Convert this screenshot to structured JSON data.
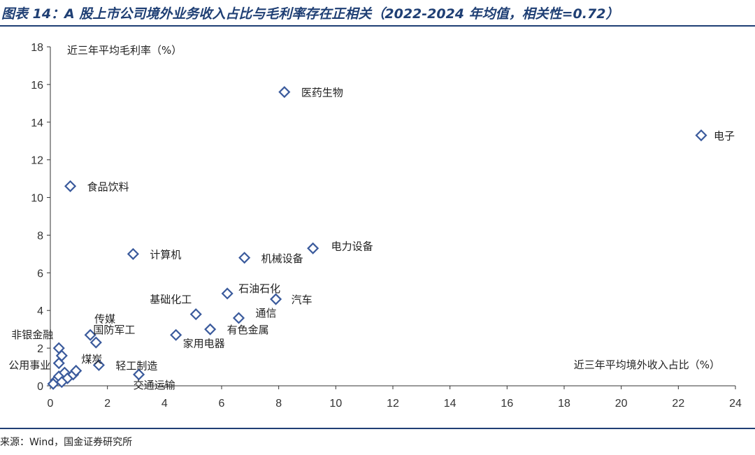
{
  "title": "图表 14：A 股上市公司境外业务收入占比与毛利率存在正相关（2022-2024 年均值，相关性=0.72）",
  "source": "来源：Wind，国金证券研究所",
  "colors": {
    "accent": "#1f3f74",
    "marker": "#3a5a9c"
  },
  "chart_data": {
    "type": "scatter",
    "xlabel": "近三年平均境外收入占比（%）",
    "ylabel": "近三年平均毛利率（%）",
    "xlim": [
      0,
      24
    ],
    "ylim": [
      0,
      18
    ],
    "xticks": [
      "0",
      "2",
      "4",
      "6",
      "8",
      "10",
      "12",
      "14",
      "16",
      "18",
      "20",
      "22",
      "24"
    ],
    "yticks": [
      "0",
      "2",
      "4",
      "6",
      "8",
      "10",
      "12",
      "14",
      "16",
      "18"
    ],
    "grid": false,
    "marker": "diamond",
    "points": [
      {
        "label": "医药生物",
        "x": 8.2,
        "y": 15.6
      },
      {
        "label": "电子",
        "x": 22.8,
        "y": 13.3
      },
      {
        "label": "食品饮料",
        "x": 0.7,
        "y": 10.6
      },
      {
        "label": "计算机",
        "x": 2.9,
        "y": 7.0
      },
      {
        "label": "电力设备",
        "x": 9.2,
        "y": 7.3
      },
      {
        "label": "机械设备",
        "x": 6.8,
        "y": 6.8
      },
      {
        "label": "石油石化",
        "x": 6.2,
        "y": 4.9
      },
      {
        "label": "汽车",
        "x": 7.9,
        "y": 4.6
      },
      {
        "label": "基础化工",
        "x": 5.1,
        "y": 3.8
      },
      {
        "label": "通信",
        "x": 6.6,
        "y": 3.6
      },
      {
        "label": "有色金属",
        "x": 5.6,
        "y": 3.0
      },
      {
        "label": "家用电器",
        "x": 4.4,
        "y": 2.7
      },
      {
        "label": "传媒",
        "x": 1.4,
        "y": 2.7
      },
      {
        "label": "国防军工",
        "x": 1.6,
        "y": 2.3
      },
      {
        "label": "非银金融",
        "x": 0.3,
        "y": 2.0
      },
      {
        "label": "煤炭",
        "x": 0.4,
        "y": 1.6
      },
      {
        "label": "公用事业",
        "x": 0.3,
        "y": 1.2
      },
      {
        "label": "轻工制造",
        "x": 1.7,
        "y": 1.1
      },
      {
        "label": "交通运输",
        "x": 3.1,
        "y": 0.6
      },
      {
        "label": "",
        "x": 0.2,
        "y": 0.3
      },
      {
        "label": "",
        "x": 0.3,
        "y": 0.5
      },
      {
        "label": "",
        "x": 0.5,
        "y": 0.7
      },
      {
        "label": "",
        "x": 0.6,
        "y": 0.4
      },
      {
        "label": "",
        "x": 0.8,
        "y": 0.6
      },
      {
        "label": "",
        "x": 0.9,
        "y": 0.8
      },
      {
        "label": "",
        "x": 0.4,
        "y": 0.2
      },
      {
        "label": "",
        "x": 0.1,
        "y": 0.1
      }
    ]
  }
}
